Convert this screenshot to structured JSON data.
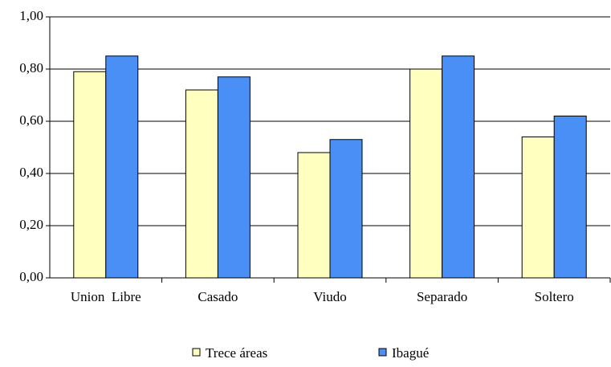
{
  "chart_data": {
    "type": "bar",
    "categories": [
      "Union  Libre",
      "Casado",
      "Viudo",
      "Separado",
      "Soltero"
    ],
    "series": [
      {
        "name": "Trece áreas",
        "color": "#ffffc0",
        "values": [
          0.79,
          0.72,
          0.48,
          0.8,
          0.54
        ]
      },
      {
        "name": "Ibagué",
        "color": "#4a8ff5",
        "values": [
          0.85,
          0.77,
          0.53,
          0.85,
          0.62
        ]
      }
    ],
    "ylim": [
      0,
      1
    ],
    "yticks": [
      {
        "value": 0,
        "label": "0,00"
      },
      {
        "value": 0.2,
        "label": "0,20"
      },
      {
        "value": 0.4,
        "label": "0,40"
      },
      {
        "value": 0.6,
        "label": "0,60"
      },
      {
        "value": 0.8,
        "label": "0,80"
      },
      {
        "value": 1,
        "label": "1,00"
      }
    ],
    "grid": true,
    "legend": "bottom"
  }
}
